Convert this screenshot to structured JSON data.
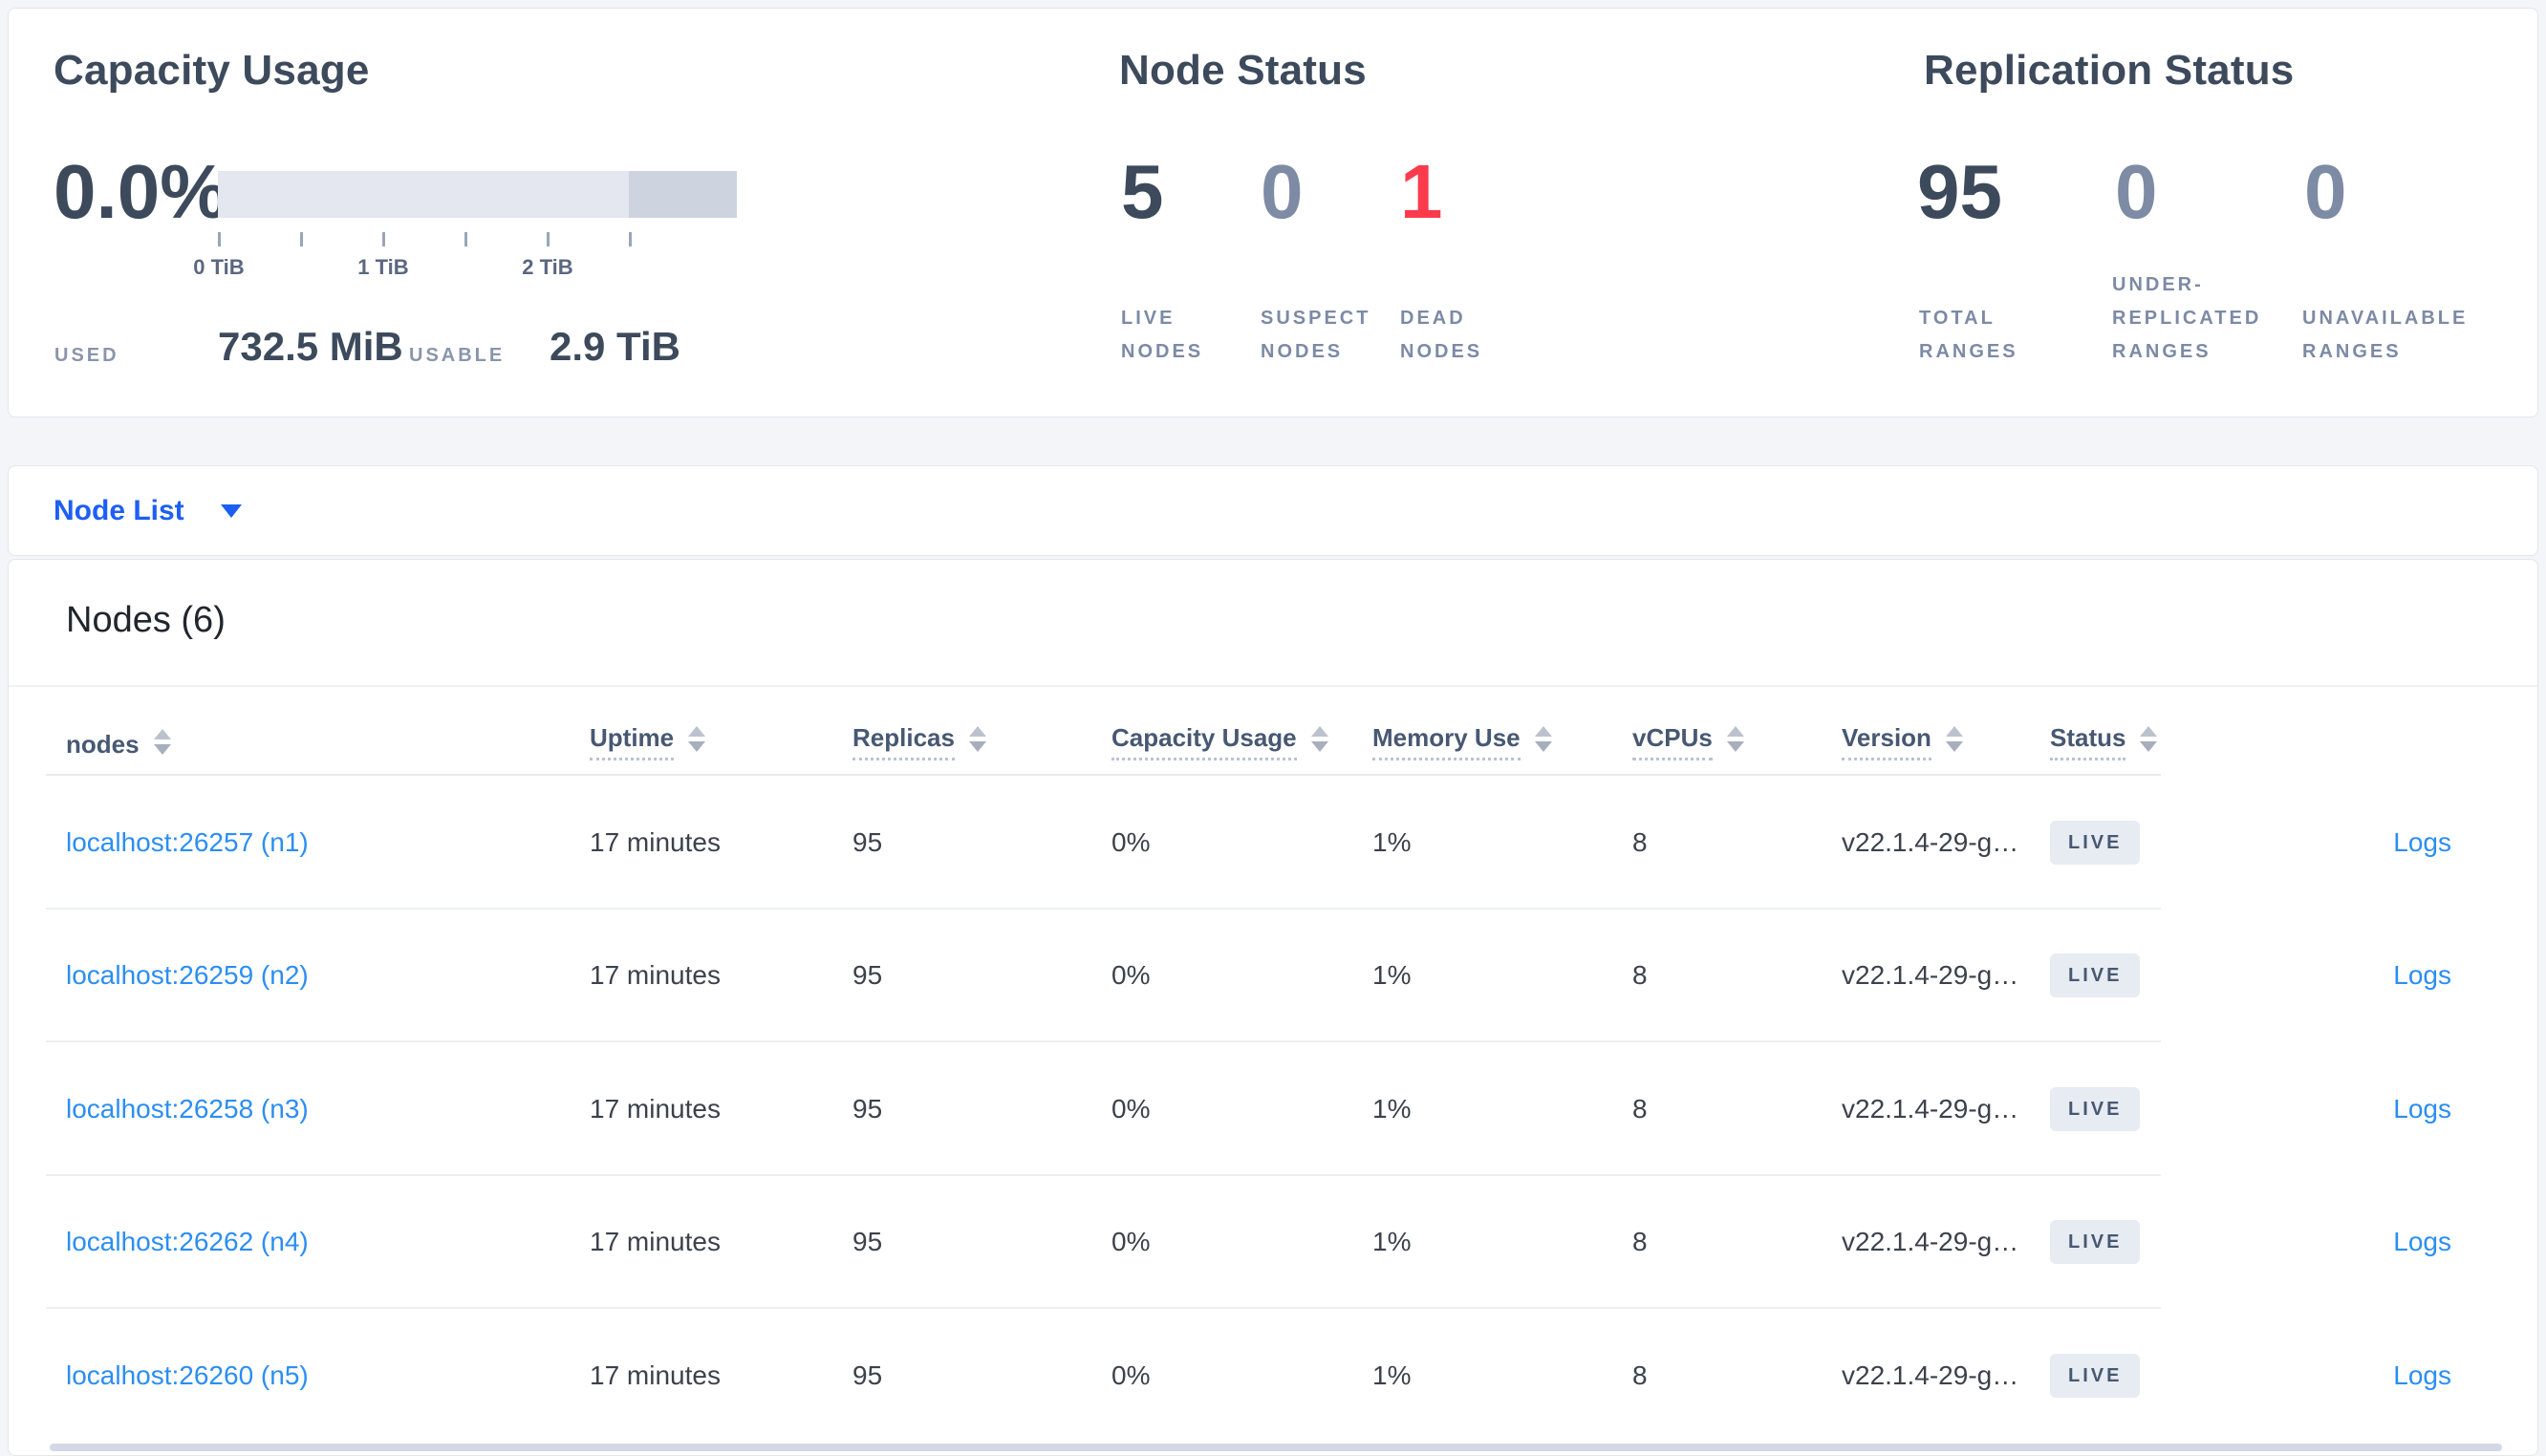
{
  "colors": {
    "page_bg": "#f3f5f9",
    "card_bg": "#ffffff",
    "accent_blue": "#1d5ef5",
    "link_blue": "#2b8ef3",
    "danger_red": "#fb3b4c",
    "dark_slate": "#3d4a5c",
    "muted_slate": "#7e8ba4",
    "bar_free": "#e4e7ef",
    "bar_other": "#ced3e0",
    "badge_bg": "#e7ebf2"
  },
  "capacity": {
    "title": "Capacity Usage",
    "percent": "0.0%",
    "bar": {
      "used_pct": 0,
      "free_pct": 79.2,
      "other_pct": 20.8
    },
    "tick_labels": [
      "0 TiB",
      "1 TiB",
      "2 TiB"
    ],
    "used_label": "USED",
    "used_value": "732.5 MiB",
    "usable_label": "USABLE",
    "usable_value": "2.9 TiB"
  },
  "node_status": {
    "title": "Node Status",
    "metrics": [
      {
        "value": "5",
        "label": "LIVE NODES",
        "tone": "dark"
      },
      {
        "value": "0",
        "label": "SUSPECT NODES",
        "tone": "muted"
      },
      {
        "value": "1",
        "label": "DEAD NODES",
        "tone": "danger"
      }
    ]
  },
  "replication_status": {
    "title": "Replication Status",
    "metrics": [
      {
        "value": "95",
        "label": "TOTAL RANGES",
        "tone": "dark"
      },
      {
        "value": "0",
        "label": "UNDER-REPLICATED RANGES",
        "tone": "muted"
      },
      {
        "value": "0",
        "label": "UNAVAILABLE RANGES",
        "tone": "muted"
      }
    ]
  },
  "node_list_bar": {
    "label": "Node List"
  },
  "nodes_section": {
    "heading": "Nodes (6)"
  },
  "table": {
    "columns": [
      {
        "label": "nodes",
        "sortable": true,
        "underline": false
      },
      {
        "label": "Uptime",
        "sortable": true,
        "underline": true
      },
      {
        "label": "Replicas",
        "sortable": true,
        "underline": true
      },
      {
        "label": "Capacity Usage",
        "sortable": true,
        "underline": true
      },
      {
        "label": "Memory Use",
        "sortable": true,
        "underline": true
      },
      {
        "label": "vCPUs",
        "sortable": true,
        "underline": true
      },
      {
        "label": "Version",
        "sortable": true,
        "underline": true
      },
      {
        "label": "Status",
        "sortable": true,
        "underline": true
      },
      {
        "label": "",
        "sortable": false,
        "underline": false
      }
    ],
    "rows": [
      {
        "node": "localhost:26257 (n1)",
        "uptime": "17 minutes",
        "replicas": "95",
        "capacity_usage": "0%",
        "memory_use": "1%",
        "vcpus": "8",
        "version": "v22.1.4-29-g…",
        "status": "LIVE",
        "logs": "Logs"
      },
      {
        "node": "localhost:26259 (n2)",
        "uptime": "17 minutes",
        "replicas": "95",
        "capacity_usage": "0%",
        "memory_use": "1%",
        "vcpus": "8",
        "version": "v22.1.4-29-g…",
        "status": "LIVE",
        "logs": "Logs"
      },
      {
        "node": "localhost:26258 (n3)",
        "uptime": "17 minutes",
        "replicas": "95",
        "capacity_usage": "0%",
        "memory_use": "1%",
        "vcpus": "8",
        "version": "v22.1.4-29-g…",
        "status": "LIVE",
        "logs": "Logs"
      },
      {
        "node": "localhost:26262 (n4)",
        "uptime": "17 minutes",
        "replicas": "95",
        "capacity_usage": "0%",
        "memory_use": "1%",
        "vcpus": "8",
        "version": "v22.1.4-29-g…",
        "status": "LIVE",
        "logs": "Logs"
      },
      {
        "node": "localhost:26260 (n5)",
        "uptime": "17 minutes",
        "replicas": "95",
        "capacity_usage": "0%",
        "memory_use": "1%",
        "vcpus": "8",
        "version": "v22.1.4-29-g…",
        "status": "LIVE",
        "logs": "Logs"
      }
    ]
  }
}
